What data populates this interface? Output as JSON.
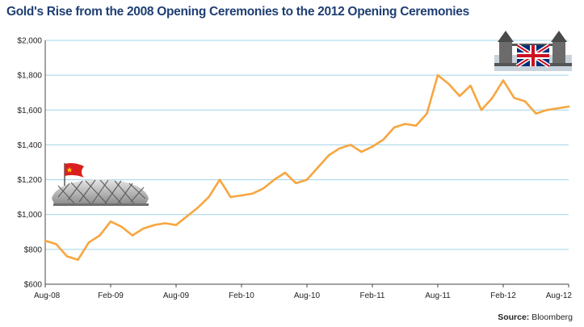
{
  "title": "Gold's Rise from the 2008 Opening Ceremonies to the 2012 Opening Ceremonies",
  "source": {
    "label": "Source:",
    "value": "Bloomberg"
  },
  "colors": {
    "line": "#f7a640",
    "grid": "#9fd3ea",
    "axis": "#444444",
    "title": "#1f3f73"
  },
  "icons": {
    "left": "beijing-stadium-china-flag-icon",
    "right": "tower-bridge-uk-flag-icon"
  },
  "chart_data": {
    "type": "line",
    "title": "Gold's Rise from the 2008 Opening Ceremonies to the 2012 Opening Ceremonies",
    "xlabel": "",
    "ylabel": "",
    "grid": true,
    "legend": "none",
    "ylim": [
      600,
      2000
    ],
    "xlim": [
      "2008-08",
      "2012-08"
    ],
    "y_ticks": [
      600,
      800,
      1000,
      1200,
      1400,
      1600,
      1800,
      2000
    ],
    "y_tick_labels": [
      "$600",
      "$800",
      "$1,000",
      "$1,200",
      "$1,400",
      "$1,600",
      "$1,800",
      "$2,000"
    ],
    "x_ticks": [
      "2008-08",
      "2009-02",
      "2009-08",
      "2010-02",
      "2010-08",
      "2011-02",
      "2011-08",
      "2012-02",
      "2012-08"
    ],
    "x_tick_labels": [
      "Aug-08",
      "Feb-09",
      "Aug-09",
      "Feb-10",
      "Aug-10",
      "Feb-11",
      "Aug-11",
      "Feb-12",
      "Aug-12"
    ],
    "series": [
      {
        "x": [
          "2008-08",
          "2008-09",
          "2008-10",
          "2008-11",
          "2008-12",
          "2009-01",
          "2009-02",
          "2009-03",
          "2009-04",
          "2009-05",
          "2009-06",
          "2009-07",
          "2009-08",
          "2009-09",
          "2009-10",
          "2009-11",
          "2009-12",
          "2010-01",
          "2010-02",
          "2010-03",
          "2010-04",
          "2010-05",
          "2010-06",
          "2010-07",
          "2010-08",
          "2010-09",
          "2010-10",
          "2010-11",
          "2010-12",
          "2011-01",
          "2011-02",
          "2011-03",
          "2011-04",
          "2011-05",
          "2011-06",
          "2011-07",
          "2011-08",
          "2011-09",
          "2011-10",
          "2011-11",
          "2011-12",
          "2012-01",
          "2012-02",
          "2012-03",
          "2012-04",
          "2012-05",
          "2012-06",
          "2012-07",
          "2012-08"
        ],
        "values": [
          850,
          830,
          760,
          740,
          840,
          880,
          960,
          930,
          880,
          920,
          940,
          950,
          940,
          990,
          1040,
          1100,
          1200,
          1100,
          1110,
          1120,
          1150,
          1200,
          1240,
          1180,
          1200,
          1270,
          1340,
          1380,
          1400,
          1360,
          1390,
          1430,
          1500,
          1520,
          1510,
          1580,
          1800,
          1750,
          1680,
          1740,
          1600,
          1670,
          1770,
          1670,
          1650,
          1580,
          1600,
          1610,
          1620
        ]
      }
    ]
  }
}
